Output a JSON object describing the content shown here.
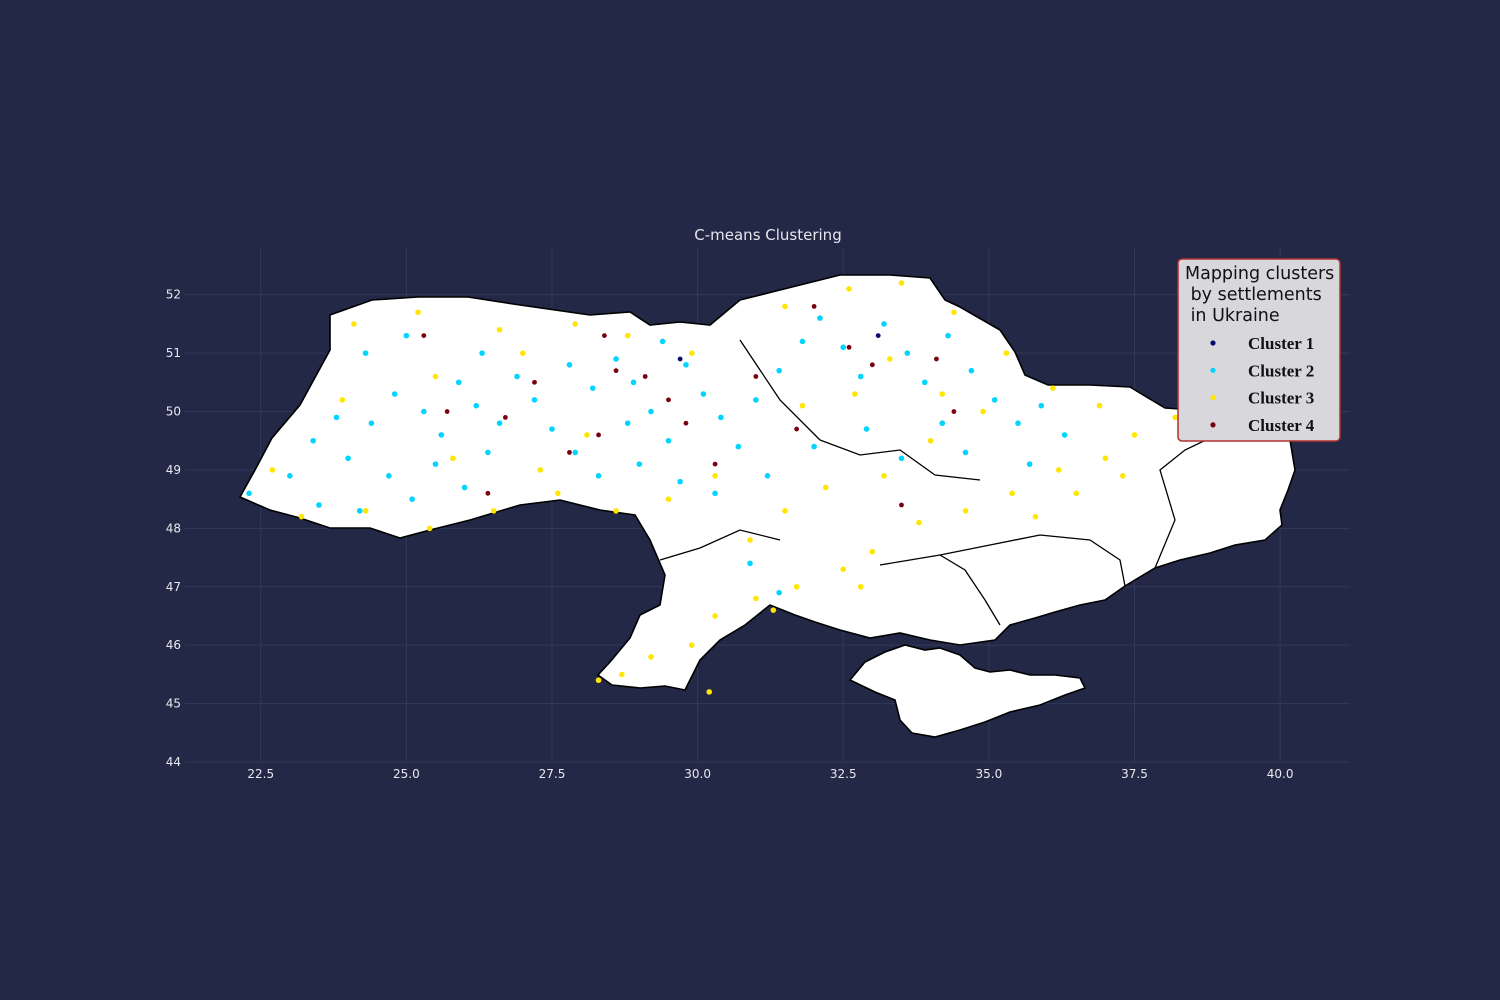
{
  "chart_data": {
    "type": "scatter",
    "title": "C-means Clustering",
    "xlabel": "",
    "ylabel": "",
    "xlim": [
      21.2,
      41.2
    ],
    "ylim": [
      44,
      52.8
    ],
    "x_ticks": [
      "22.5",
      "25.0",
      "27.5",
      "30.0",
      "32.5",
      "35.0",
      "37.5",
      "40.0"
    ],
    "x_tick_values": [
      22.5,
      25.0,
      27.5,
      30.0,
      32.5,
      35.0,
      37.5,
      40.0
    ],
    "y_ticks": [
      "44",
      "45",
      "46",
      "47",
      "48",
      "49",
      "50",
      "51",
      "52"
    ],
    "y_tick_values": [
      44,
      45,
      46,
      47,
      48,
      49,
      50,
      51,
      52
    ],
    "grid": true,
    "background_color": "#222845",
    "grid_color": "#323a5a",
    "land_color": "#ffffff",
    "legend": {
      "title_lines": [
        "Mapping clusters",
        " by settlements",
        " in Ukraine"
      ],
      "placement": "top-right",
      "border_color": "#b03030",
      "background": "#d8d8dc"
    },
    "series": [
      {
        "name": "Cluster 1",
        "color": "#0a0a6e",
        "points": [
          [
            29.7,
            50.9
          ],
          [
            33.1,
            51.3
          ]
        ]
      },
      {
        "name": "Cluster 2",
        "color": "#00d4ff",
        "points": [
          [
            22.3,
            48.6
          ],
          [
            23.0,
            48.9
          ],
          [
            23.4,
            49.5
          ],
          [
            23.8,
            49.9
          ],
          [
            24.0,
            49.2
          ],
          [
            24.4,
            49.8
          ],
          [
            24.8,
            50.3
          ],
          [
            25.3,
            50.0
          ],
          [
            25.6,
            49.6
          ],
          [
            25.9,
            50.5
          ],
          [
            26.2,
            50.1
          ],
          [
            26.6,
            49.8
          ],
          [
            26.9,
            50.6
          ],
          [
            27.2,
            50.2
          ],
          [
            27.5,
            49.7
          ],
          [
            27.9,
            49.3
          ],
          [
            28.2,
            50.4
          ],
          [
            28.6,
            50.9
          ],
          [
            28.9,
            50.5
          ],
          [
            29.2,
            50.0
          ],
          [
            29.5,
            49.5
          ],
          [
            29.8,
            50.8
          ],
          [
            30.1,
            50.3
          ],
          [
            30.4,
            49.9
          ],
          [
            30.7,
            49.4
          ],
          [
            31.0,
            50.2
          ],
          [
            31.4,
            50.7
          ],
          [
            31.8,
            51.2
          ],
          [
            32.1,
            51.6
          ],
          [
            32.5,
            51.1
          ],
          [
            32.8,
            50.6
          ],
          [
            33.2,
            51.5
          ],
          [
            33.6,
            51.0
          ],
          [
            33.9,
            50.5
          ],
          [
            34.3,
            51.3
          ],
          [
            34.7,
            50.7
          ],
          [
            35.1,
            50.2
          ],
          [
            35.5,
            49.8
          ],
          [
            35.9,
            50.1
          ],
          [
            36.3,
            49.6
          ],
          [
            24.7,
            48.9
          ],
          [
            25.1,
            48.5
          ],
          [
            25.5,
            49.1
          ],
          [
            26.0,
            48.7
          ],
          [
            26.4,
            49.3
          ],
          [
            28.3,
            48.9
          ],
          [
            29.0,
            49.1
          ],
          [
            29.7,
            48.8
          ],
          [
            30.3,
            48.6
          ],
          [
            31.2,
            48.9
          ],
          [
            32.0,
            49.4
          ],
          [
            32.9,
            49.7
          ],
          [
            33.5,
            49.2
          ],
          [
            34.2,
            49.8
          ],
          [
            23.5,
            48.4
          ],
          [
            24.2,
            48.3
          ],
          [
            30.9,
            47.4
          ],
          [
            31.4,
            46.9
          ],
          [
            34.6,
            49.3
          ],
          [
            35.7,
            49.1
          ],
          [
            28.8,
            49.8
          ],
          [
            27.8,
            50.8
          ],
          [
            26.3,
            51.0
          ],
          [
            25.0,
            51.3
          ],
          [
            24.3,
            51.0
          ],
          [
            29.4,
            51.2
          ]
        ]
      },
      {
        "name": "Cluster 3",
        "color": "#ffe600",
        "points": [
          [
            24.1,
            51.5
          ],
          [
            25.2,
            51.7
          ],
          [
            26.6,
            51.4
          ],
          [
            27.9,
            51.5
          ],
          [
            28.8,
            51.3
          ],
          [
            29.9,
            51.0
          ],
          [
            31.5,
            51.8
          ],
          [
            32.6,
            52.1
          ],
          [
            33.5,
            52.2
          ],
          [
            34.4,
            51.7
          ],
          [
            35.3,
            51.0
          ],
          [
            36.1,
            50.4
          ],
          [
            36.9,
            50.1
          ],
          [
            37.5,
            49.6
          ],
          [
            38.2,
            49.9
          ],
          [
            37.0,
            49.2
          ],
          [
            36.2,
            49.0
          ],
          [
            35.4,
            48.6
          ],
          [
            34.6,
            48.3
          ],
          [
            33.8,
            48.1
          ],
          [
            33.0,
            47.6
          ],
          [
            32.5,
            47.3
          ],
          [
            31.7,
            47.0
          ],
          [
            31.0,
            46.8
          ],
          [
            30.3,
            46.5
          ],
          [
            29.9,
            46.0
          ],
          [
            29.2,
            45.8
          ],
          [
            28.7,
            45.5
          ],
          [
            28.3,
            45.4
          ],
          [
            30.2,
            45.2
          ],
          [
            30.9,
            47.8
          ],
          [
            31.5,
            48.3
          ],
          [
            32.2,
            48.7
          ],
          [
            33.2,
            48.9
          ],
          [
            34.0,
            49.5
          ],
          [
            34.9,
            50.0
          ],
          [
            22.7,
            49.0
          ],
          [
            23.2,
            48.2
          ],
          [
            24.3,
            48.3
          ],
          [
            25.4,
            48.0
          ],
          [
            26.5,
            48.3
          ],
          [
            27.6,
            48.6
          ],
          [
            28.6,
            48.3
          ],
          [
            29.5,
            48.5
          ],
          [
            30.3,
            48.9
          ],
          [
            23.9,
            50.2
          ],
          [
            25.5,
            50.6
          ],
          [
            27.0,
            51.0
          ],
          [
            27.3,
            49.0
          ],
          [
            28.1,
            49.6
          ],
          [
            31.8,
            50.1
          ],
          [
            32.7,
            50.3
          ],
          [
            33.3,
            50.9
          ],
          [
            34.2,
            50.3
          ],
          [
            36.5,
            48.6
          ],
          [
            35.8,
            48.2
          ],
          [
            37.3,
            48.9
          ],
          [
            32.8,
            47.0
          ],
          [
            31.3,
            46.6
          ],
          [
            25.8,
            49.2
          ]
        ]
      },
      {
        "name": "Cluster 4",
        "color": "#7a0010",
        "points": [
          [
            25.7,
            50.0
          ],
          [
            26.7,
            49.9
          ],
          [
            27.8,
            49.3
          ],
          [
            28.3,
            49.6
          ],
          [
            28.6,
            50.7
          ],
          [
            29.1,
            50.6
          ],
          [
            29.5,
            50.2
          ],
          [
            30.3,
            49.1
          ],
          [
            31.0,
            50.6
          ],
          [
            31.7,
            49.7
          ],
          [
            32.6,
            51.1
          ],
          [
            33.0,
            50.8
          ],
          [
            34.1,
            50.9
          ],
          [
            34.4,
            50.0
          ],
          [
            28.4,
            51.3
          ],
          [
            25.3,
            51.3
          ],
          [
            29.8,
            49.8
          ],
          [
            27.2,
            50.5
          ],
          [
            33.5,
            48.4
          ],
          [
            32.0,
            51.8
          ],
          [
            26.4,
            48.6
          ]
        ]
      }
    ]
  }
}
